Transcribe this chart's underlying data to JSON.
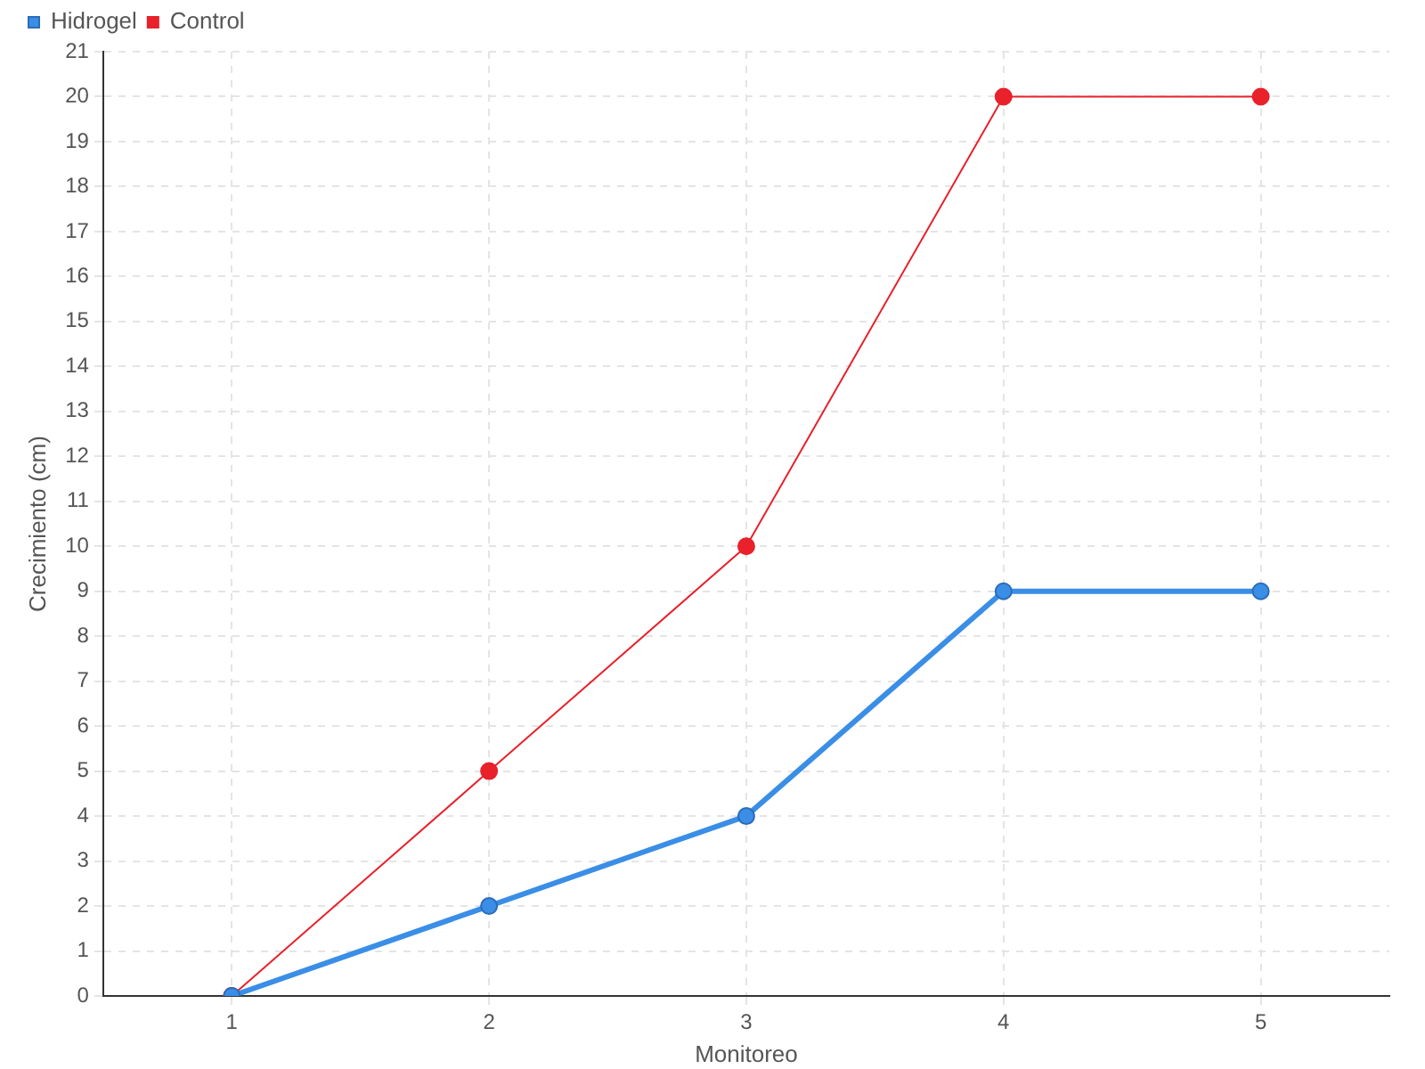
{
  "chart_data": {
    "type": "line",
    "xlabel": "Monitoreo",
    "ylabel": "Crecimiento (cm)",
    "categories": [
      "1",
      "2",
      "3",
      "4",
      "5"
    ],
    "series": [
      {
        "name": "Hidrogel",
        "color": "#3a8ee6",
        "values": [
          0,
          2,
          4,
          9,
          9
        ]
      },
      {
        "name": "Control",
        "color": "#e8212b",
        "values": [
          0,
          5,
          10,
          20,
          20
        ]
      }
    ],
    "ylim": [
      0,
      21
    ],
    "yticks": [
      0,
      1,
      2,
      3,
      4,
      5,
      6,
      7,
      8,
      9,
      10,
      11,
      12,
      13,
      14,
      15,
      16,
      17,
      18,
      19,
      20,
      21
    ],
    "grid": true,
    "legend": "top left",
    "marker": "circle",
    "line_style": "solid"
  }
}
